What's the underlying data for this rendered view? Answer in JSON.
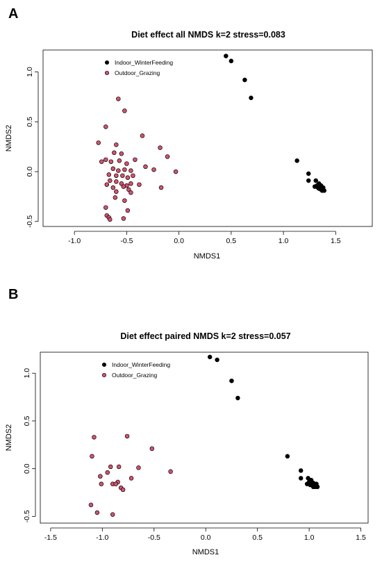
{
  "colors": {
    "indoor": "#000000",
    "outdoor": "#d4536f",
    "frame": "#000000"
  },
  "chart_data": [
    {
      "panel": "A",
      "type": "scatter",
      "title": "Diet effect all NMDS k=2 stress=0.083",
      "xlabel": "NMDS1",
      "ylabel": "NMDS2",
      "xlim": [
        -1.3,
        1.85
      ],
      "ylim": [
        -0.55,
        1.22
      ],
      "xticks": [
        "-1.0",
        "-0.5",
        "0.0",
        "0.5",
        "1.0",
        "1.5"
      ],
      "yticks": [
        "-0.5",
        "0.0",
        "0.5",
        "1.0"
      ],
      "legend": "top-left",
      "series": [
        {
          "name": "Indoor_WinterFeeding",
          "color_key": "indoor",
          "points": [
            [
              0.45,
              1.16
            ],
            [
              0.5,
              1.11
            ],
            [
              0.63,
              0.92
            ],
            [
              0.69,
              0.74
            ],
            [
              1.13,
              0.11
            ],
            [
              1.24,
              -0.02
            ],
            [
              1.24,
              -0.09
            ],
            [
              1.31,
              -0.09
            ],
            [
              1.32,
              -0.14
            ],
            [
              1.34,
              -0.12
            ],
            [
              1.36,
              -0.14
            ],
            [
              1.3,
              -0.15
            ],
            [
              1.34,
              -0.17
            ],
            [
              1.36,
              -0.18
            ],
            [
              1.38,
              -0.16
            ],
            [
              1.37,
              -0.19
            ],
            [
              1.39,
              -0.19
            ],
            [
              1.33,
              -0.16
            ],
            [
              1.35,
              -0.16
            ],
            [
              1.38,
              -0.18
            ]
          ]
        },
        {
          "name": "Outdoor_Grazing",
          "color_key": "outdoor",
          "points": [
            [
              -0.58,
              0.73
            ],
            [
              -0.52,
              0.61
            ],
            [
              -0.7,
              0.45
            ],
            [
              -0.77,
              0.29
            ],
            [
              -0.6,
              0.27
            ],
            [
              -0.35,
              0.36
            ],
            [
              -0.18,
              0.24
            ],
            [
              -0.11,
              0.15
            ],
            [
              -0.62,
              0.19
            ],
            [
              -0.55,
              0.18
            ],
            [
              -0.7,
              0.12
            ],
            [
              -0.74,
              0.1
            ],
            [
              -0.65,
              0.1
            ],
            [
              -0.57,
              0.11
            ],
            [
              -0.5,
              0.08
            ],
            [
              -0.42,
              0.12
            ],
            [
              -0.32,
              0.05
            ],
            [
              -0.24,
              0.02
            ],
            [
              -0.03,
              0.0
            ],
            [
              -0.63,
              0.03
            ],
            [
              -0.58,
              0.01
            ],
            [
              -0.52,
              0.02
            ],
            [
              -0.46,
              0.01
            ],
            [
              -0.67,
              -0.03
            ],
            [
              -0.6,
              -0.04
            ],
            [
              -0.54,
              -0.04
            ],
            [
              -0.49,
              -0.06
            ],
            [
              -0.44,
              -0.04
            ],
            [
              -0.66,
              -0.09
            ],
            [
              -0.6,
              -0.1
            ],
            [
              -0.55,
              -0.12
            ],
            [
              -0.5,
              -0.14
            ],
            [
              -0.46,
              -0.12
            ],
            [
              -0.38,
              -0.13
            ],
            [
              -0.69,
              -0.13
            ],
            [
              -0.63,
              -0.16
            ],
            [
              -0.53,
              -0.15
            ],
            [
              -0.48,
              -0.18
            ],
            [
              -0.17,
              -0.16
            ],
            [
              -0.6,
              -0.2
            ],
            [
              -0.46,
              -0.21
            ],
            [
              -0.52,
              -0.29
            ],
            [
              -0.61,
              -0.26
            ],
            [
              -0.7,
              -0.36
            ],
            [
              -0.49,
              -0.39
            ],
            [
              -0.69,
              -0.44
            ],
            [
              -0.67,
              -0.46
            ],
            [
              -0.66,
              -0.48
            ],
            [
              -0.53,
              -0.47
            ]
          ]
        }
      ]
    },
    {
      "panel": "B",
      "type": "scatter",
      "title": "Diet effect paired NMDS k=2 stress=0.057",
      "xlabel": "NMDS1",
      "ylabel": "NMDS2",
      "xlim": [
        -1.6,
        1.57
      ],
      "ylim": [
        -0.57,
        1.22
      ],
      "xticks": [
        "-1.5",
        "-1.0",
        "-0.5",
        "0.0",
        "0.5",
        "1.0",
        "1.5"
      ],
      "yticks": [
        "-0.5",
        "0.0",
        "0.5",
        "1.0"
      ],
      "legend": "top-left",
      "series": [
        {
          "name": "Indoor_WinterFeeding",
          "color_key": "indoor",
          "points": [
            [
              0.04,
              1.17
            ],
            [
              0.11,
              1.14
            ],
            [
              0.25,
              0.92
            ],
            [
              0.31,
              0.74
            ],
            [
              0.79,
              0.13
            ],
            [
              0.92,
              -0.02
            ],
            [
              0.92,
              -0.1
            ],
            [
              0.99,
              -0.1
            ],
            [
              1.0,
              -0.14
            ],
            [
              1.02,
              -0.12
            ],
            [
              1.04,
              -0.15
            ],
            [
              0.98,
              -0.16
            ],
            [
              1.02,
              -0.17
            ],
            [
              1.04,
              -0.19
            ],
            [
              1.07,
              -0.16
            ],
            [
              1.06,
              -0.19
            ],
            [
              1.08,
              -0.19
            ],
            [
              1.01,
              -0.17
            ],
            [
              1.03,
              -0.16
            ],
            [
              1.05,
              -0.18
            ]
          ]
        },
        {
          "name": "Outdoor_Grazing",
          "color_key": "outdoor",
          "points": [
            [
              -1.08,
              0.33
            ],
            [
              -0.76,
              0.34
            ],
            [
              -1.1,
              0.13
            ],
            [
              -0.52,
              0.21
            ],
            [
              -0.92,
              0.02
            ],
            [
              -0.84,
              0.02
            ],
            [
              -0.65,
              0.01
            ],
            [
              -0.34,
              -0.03
            ],
            [
              -0.95,
              -0.04
            ],
            [
              -1.02,
              -0.08
            ],
            [
              -0.72,
              -0.1
            ],
            [
              -0.85,
              -0.14
            ],
            [
              -0.9,
              -0.16
            ],
            [
              -0.87,
              -0.16
            ],
            [
              -1.01,
              -0.16
            ],
            [
              -0.82,
              -0.2
            ],
            [
              -0.8,
              -0.22
            ],
            [
              -1.11,
              -0.38
            ],
            [
              -1.05,
              -0.46
            ],
            [
              -0.9,
              -0.48
            ]
          ]
        }
      ]
    }
  ]
}
